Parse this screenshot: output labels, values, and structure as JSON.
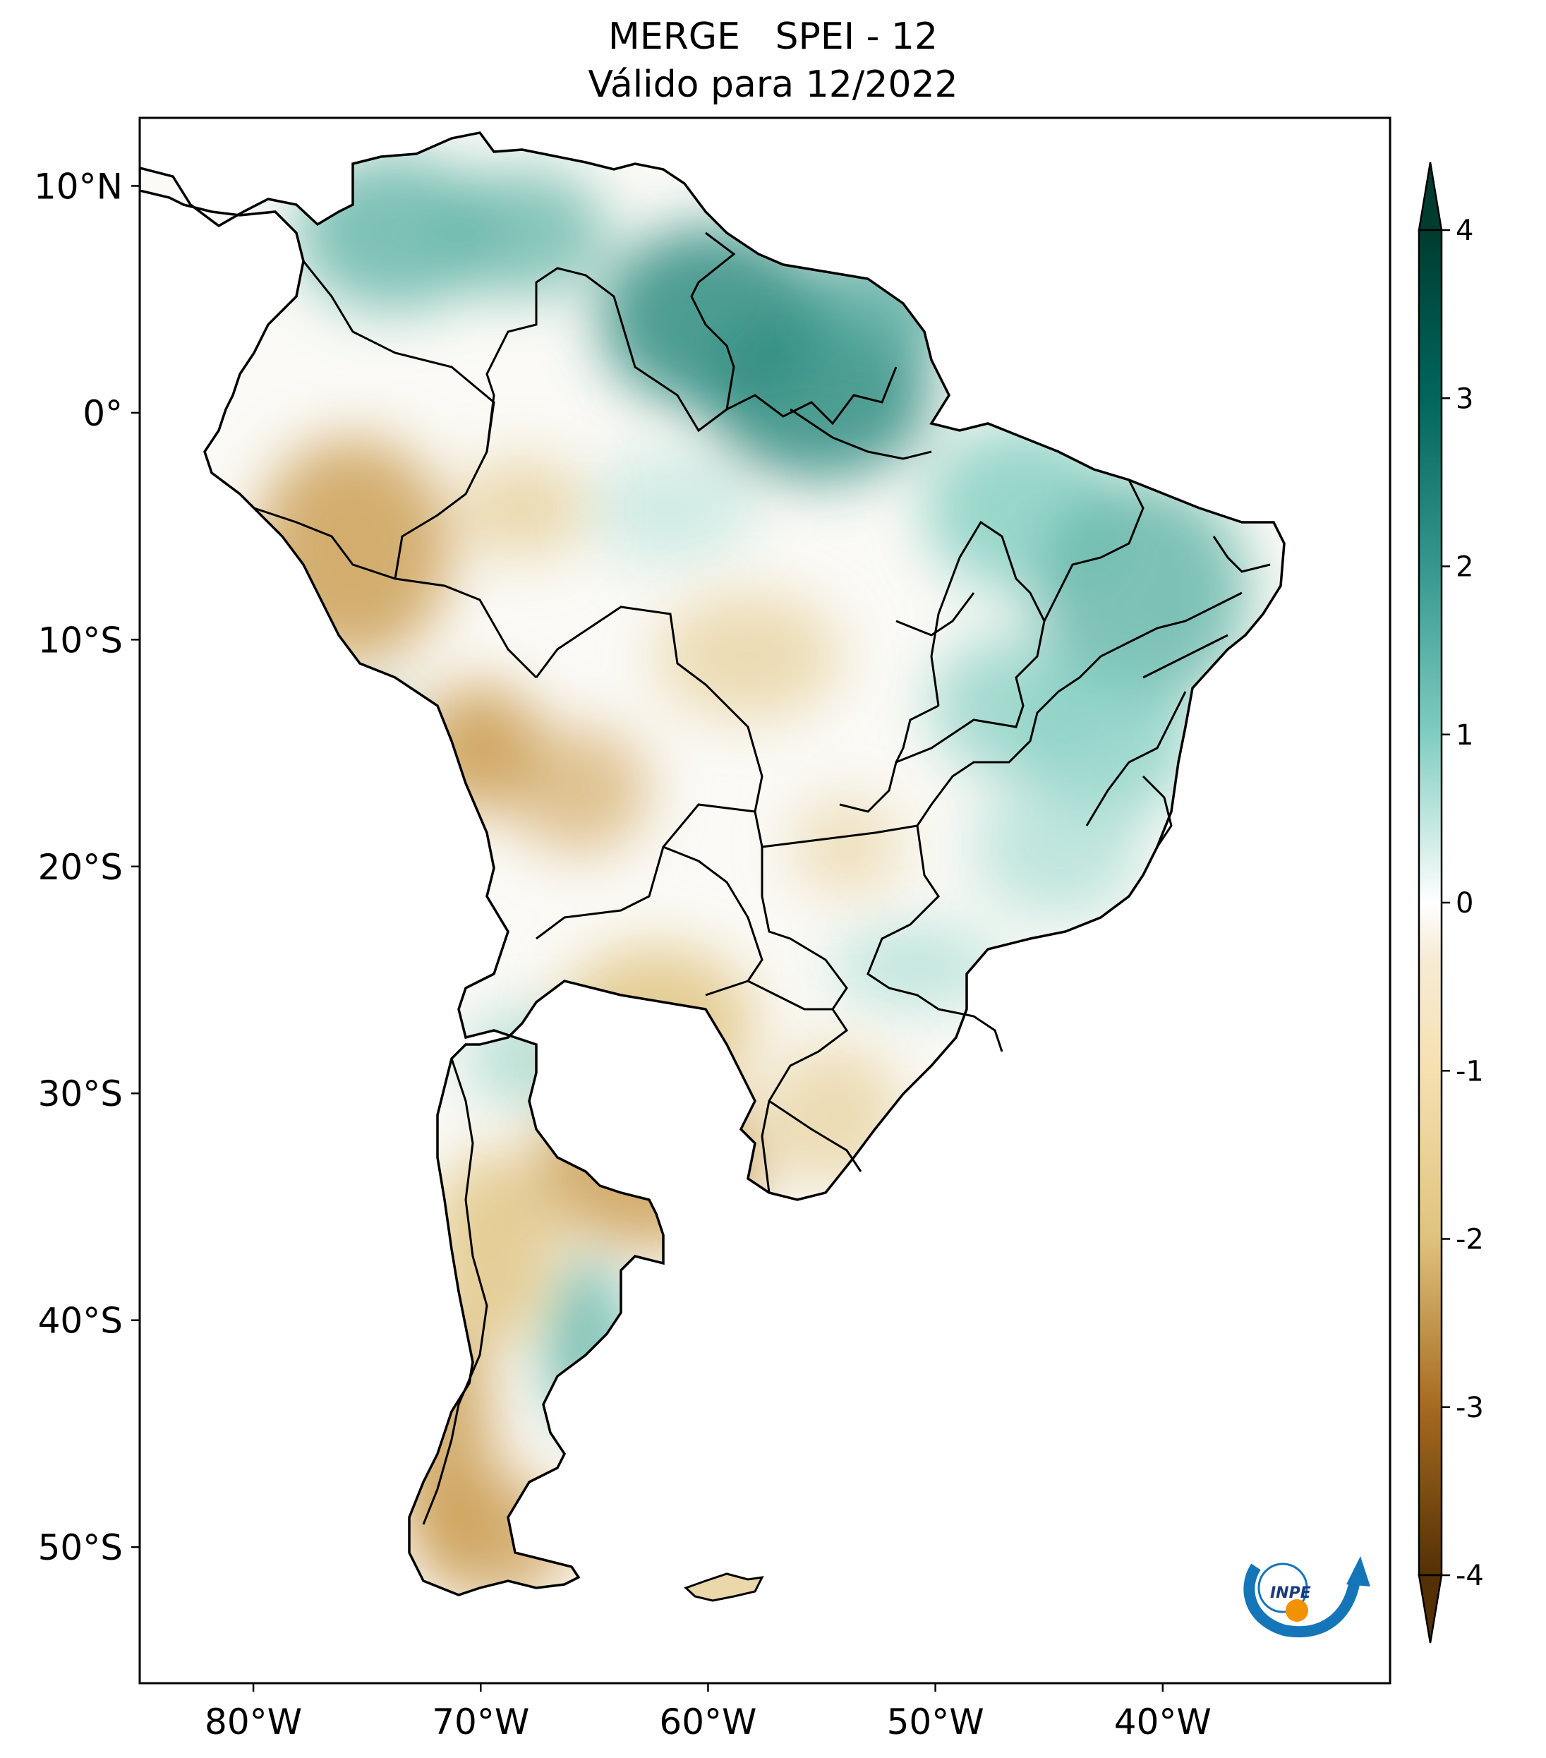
{
  "title": {
    "line1": "MERGE   SPEI - 12",
    "line2": "Válido para 12/2022"
  },
  "map": {
    "extent": {
      "lon": [
        -85,
        -30
      ],
      "lat": [
        -56,
        13
      ]
    },
    "lat_ticks": [
      {
        "value": 10,
        "label": "10°N"
      },
      {
        "value": 0,
        "label": "0°"
      },
      {
        "value": -10,
        "label": "10°S"
      },
      {
        "value": -20,
        "label": "20°S"
      },
      {
        "value": -30,
        "label": "30°S"
      },
      {
        "value": -40,
        "label": "40°S"
      },
      {
        "value": -50,
        "label": "50°S"
      }
    ],
    "lon_ticks": [
      {
        "value": -80,
        "label": "80°W"
      },
      {
        "value": -70,
        "label": "70°W"
      },
      {
        "value": -60,
        "label": "60°W"
      },
      {
        "value": -50,
        "label": "50°W"
      },
      {
        "value": -40,
        "label": "40°W"
      }
    ],
    "logo_text": "INPE"
  },
  "colorbar": {
    "min": -4,
    "max": 4,
    "ticks": [
      {
        "value": 4,
        "label": "4"
      },
      {
        "value": 3,
        "label": "3"
      },
      {
        "value": 2,
        "label": "2"
      },
      {
        "value": 1,
        "label": "1"
      },
      {
        "value": 0,
        "label": "0"
      },
      {
        "value": -1,
        "label": "-1"
      },
      {
        "value": -2,
        "label": "-2"
      },
      {
        "value": -3,
        "label": "-3"
      },
      {
        "value": -4,
        "label": "-4"
      }
    ],
    "colors": {
      "wet_max": "#003c30",
      "wet_high": "#35978f",
      "wet_mid": "#80cdc1",
      "wet_low": "#c7eae5",
      "neutral": "#f5f5f5",
      "dry_low": "#f6e8c3",
      "dry_mid": "#dfc27d",
      "dry_high": "#bf812d",
      "dry_max": "#543005"
    }
  }
}
